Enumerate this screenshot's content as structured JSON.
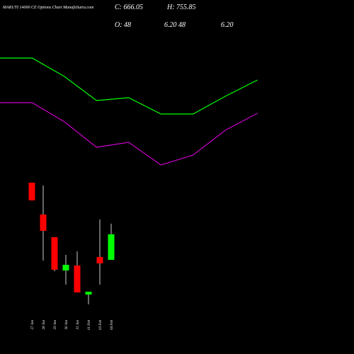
{
  "chart_data": [
    {
      "type": "line",
      "x": [
        0,
        1,
        2,
        3,
        4,
        5,
        6,
        7,
        8
      ],
      "xlim": [
        0,
        11
      ],
      "ylim": [
        0,
        1000
      ],
      "series": [
        {
          "color": "#00ff00",
          "values": [
            840,
            840,
            710,
            540,
            560,
            445,
            445,
            570,
            685
          ]
        },
        {
          "color": "#cc00cc",
          "values": [
            525,
            525,
            390,
            210,
            245,
            85,
            155,
            330,
            450
          ]
        }
      ]
    },
    {
      "type": "candlestick",
      "title": "MARUTI 14000  CE Options  Chart MunafaSutra.com",
      "header": [
        "C: 666.05",
        "H: 755.85",
        "O: 48",
        "6.20 48",
        "6.20"
      ],
      "categories": [
        "27 Jan",
        "28 Jan",
        "29 Jan",
        "30 Jan",
        "31 Jan",
        "01 Feb",
        "03 Feb",
        "04 Feb"
      ],
      "open": [
        958,
        721,
        553,
        305,
        342,
        126,
        405,
        384
      ],
      "high": [
        958,
        937,
        553,
        421,
        447,
        147,
        684,
        653
      ],
      "low": [
        826,
        379,
        300,
        200,
        142,
        53,
        200,
        384
      ],
      "close": [
        826,
        600,
        311,
        347,
        142,
        147,
        358,
        574
      ],
      "ylim": [
        0,
        1000
      ],
      "up_color": "#00ff00",
      "down_color": "#ff0000"
    }
  ]
}
